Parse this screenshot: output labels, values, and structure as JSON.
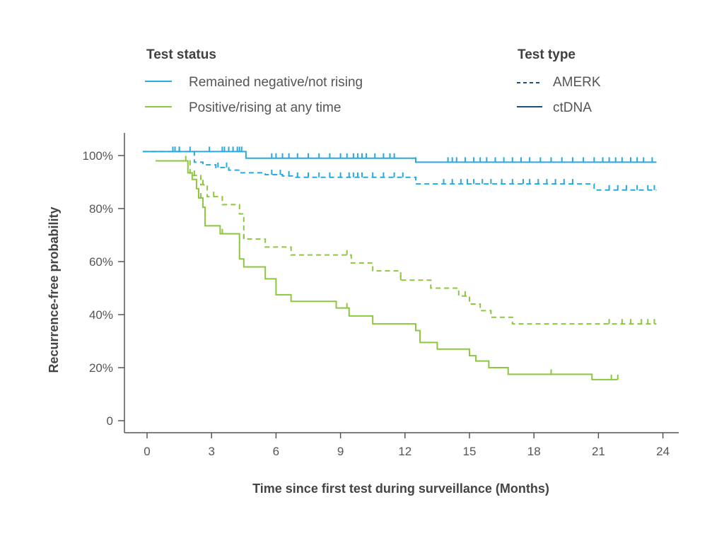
{
  "chart_data": {
    "type": "line",
    "subtype": "kaplan-meier-step",
    "xlabel": "Time since first test during surveillance (Months)",
    "ylabel": "Recurrence-free probability",
    "xlim": [
      -1,
      25
    ],
    "ylim": [
      0,
      105
    ],
    "x_ticks": [
      0,
      3,
      6,
      9,
      12,
      15,
      18,
      21,
      24
    ],
    "x_tick_labels": [
      "0",
      "3",
      "6",
      "9",
      "12",
      "15",
      "18",
      "21",
      "24"
    ],
    "y_ticks": [
      0,
      20,
      40,
      60,
      80,
      100
    ],
    "y_tick_labels": [
      "0",
      "20%",
      "40%",
      "60%",
      "80%",
      "100%"
    ],
    "grid": false,
    "colors": {
      "negative": "#29a9e0",
      "positive": "#8dc63f",
      "legend_type": "#1f4e79",
      "axis": "#555555"
    },
    "legend": {
      "status_title": "Test status",
      "status_items": [
        {
          "label": "Remained negative/not rising",
          "color": "#29a9e0"
        },
        {
          "label": "Positive/rising at any time",
          "color": "#8dc63f"
        }
      ],
      "type_title": "Test type",
      "type_items": [
        {
          "label": "AMERK",
          "style": "dashed",
          "color": "#1f4e79"
        },
        {
          "label": "ctDNA",
          "style": "solid",
          "color": "#1f4e79"
        }
      ]
    },
    "series": [
      {
        "name": "ctDNA · Remained negative/not rising",
        "color": "#29a9e0",
        "dash": false,
        "x": [
          -0.2,
          4.6,
          12.5,
          23.7
        ],
        "y": [
          101.5,
          99.0,
          97.5,
          97.5
        ],
        "censor": [
          1.2,
          1.3,
          1.5,
          2.9,
          3.5,
          3.6,
          3.8,
          4.0,
          4.2,
          4.3,
          4.4,
          5.8,
          6.0,
          6.3,
          6.6,
          7.0,
          7.5,
          8.0,
          8.5,
          9.0,
          9.3,
          9.6,
          9.8,
          10.0,
          10.2,
          10.6,
          11.0,
          11.3,
          11.5,
          12.5,
          14.0,
          14.2,
          14.4,
          14.8,
          15.2,
          15.5,
          15.8,
          16.2,
          16.6,
          17.0,
          17.4,
          17.8,
          18.3,
          18.8,
          19.3,
          19.8,
          20.3,
          20.8,
          21.2,
          21.5,
          21.8,
          22.1,
          22.5,
          22.8,
          23.1,
          23.5
        ]
      },
      {
        "name": "AMERK · Remained negative/not rising",
        "color": "#29a9e0",
        "dash": true,
        "x": [
          -0.2,
          2.2,
          2.6,
          3.2,
          3.8,
          4.3,
          5.5,
          6.3,
          6.8,
          12.5,
          15.5,
          20.8,
          23.7
        ],
        "y": [
          101.5,
          97.5,
          96.5,
          95.5,
          94.5,
          93.5,
          92.8,
          92.3,
          91.8,
          89.3,
          89.3,
          87.0,
          87.0
        ],
        "censor": [
          1.5,
          2.0,
          3.3,
          3.7,
          5.8,
          6.2,
          6.6,
          7.0,
          7.5,
          8.0,
          8.5,
          9.0,
          9.4,
          9.6,
          9.8,
          10.0,
          10.5,
          11.0,
          11.5,
          11.9,
          13.8,
          14.2,
          14.6,
          14.9,
          15.2,
          15.6,
          16.0,
          16.5,
          17.0,
          17.5,
          17.8,
          18.2,
          18.6,
          19.0,
          19.4,
          19.8,
          21.5,
          21.9,
          22.3,
          22.8,
          23.3,
          23.6
        ]
      },
      {
        "name": "AMERK · Positive/rising at any time",
        "color": "#8dc63f",
        "dash": true,
        "x": [
          0.4,
          2.0,
          2.5,
          2.8,
          3.5,
          4.3,
          4.5,
          5.5,
          6.7,
          9.5,
          10.5,
          11.8,
          13.2,
          14.5,
          15.0,
          15.5,
          16.0,
          17.0,
          23.7
        ],
        "y": [
          98.0,
          92.5,
          89.0,
          84.5,
          81.5,
          78.0,
          68.5,
          65.5,
          62.5,
          59.5,
          56.5,
          53.0,
          50.0,
          47.0,
          44.0,
          41.5,
          39.0,
          36.5,
          36.5
        ],
        "censor": [
          1.8,
          2.2,
          2.6,
          3.1,
          4.5,
          9.3,
          11.8,
          14.8,
          21.5,
          22.1,
          22.5,
          23.0,
          23.3,
          23.6
        ]
      },
      {
        "name": "ctDNA · Positive/rising at any time",
        "color": "#8dc63f",
        "dash": false,
        "x": [
          0.4,
          1.9,
          2.1,
          2.3,
          2.4,
          2.6,
          2.7,
          3.4,
          4.3,
          4.5,
          5.5,
          6.0,
          6.7,
          8.8,
          9.4,
          10.5,
          12.5,
          12.7,
          13.5,
          15.0,
          15.3,
          15.9,
          16.8,
          20.7,
          21.9
        ],
        "y": [
          98.0,
          93.5,
          91.0,
          87.5,
          84.0,
          80.5,
          73.5,
          70.5,
          61.0,
          58.0,
          53.5,
          47.5,
          45.0,
          42.5,
          39.5,
          36.5,
          34.0,
          29.5,
          27.0,
          24.5,
          22.5,
          20.0,
          17.5,
          15.5,
          15.5
        ],
        "censor": [
          2.5,
          3.5,
          9.3,
          12.5,
          18.8,
          21.6,
          21.9
        ]
      }
    ]
  }
}
